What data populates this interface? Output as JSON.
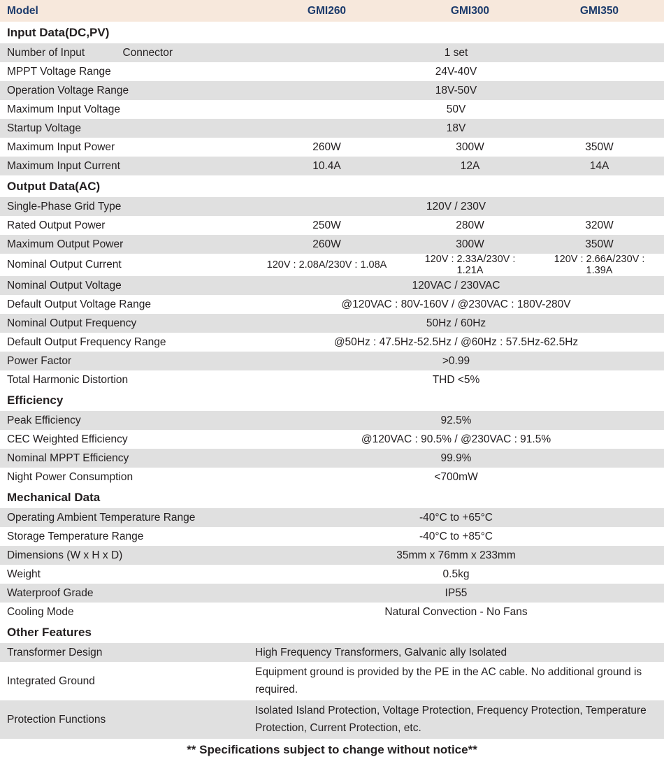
{
  "header": {
    "model": "Model",
    "m1": "GMI260",
    "m2": "GMI300",
    "m3": "GMI350"
  },
  "sections": {
    "input": "Input Data(DC,PV)",
    "output": "Output Data(AC)",
    "eff": "Efficiency",
    "mech": "Mechanical Data",
    "other": "Other Features"
  },
  "rows": {
    "num_input": {
      "label": "Number of Input",
      "extra": "Connector",
      "val": "1 set"
    },
    "mppt": {
      "label": "MPPT Voltage Range",
      "val": "24V-40V"
    },
    "opv": {
      "label": "Operation Voltage Range",
      "val": "18V-50V"
    },
    "maxv": {
      "label": "Maximum Input Voltage",
      "val": "50V"
    },
    "startup": {
      "label": "Startup Voltage",
      "val": "18V"
    },
    "maxp": {
      "label": "Maximum Input Power",
      "m1": "260W",
      "m2": "300W",
      "m3": "350W"
    },
    "maxi": {
      "label": "Maximum Input Current",
      "m1": "10.4A",
      "m2": "12A",
      "m3": "14A"
    },
    "grid": {
      "label": "Single-Phase Grid Type",
      "val": "120V  /  230V"
    },
    "rop": {
      "label": "Rated Output Power",
      "m1": "250W",
      "m2": "280W",
      "m3": "320W"
    },
    "mop": {
      "label": "Maximum Output Power",
      "m1": "260W",
      "m2": "300W",
      "m3": "350W"
    },
    "noc": {
      "label": "Nominal Output Current",
      "m1": "120V : 2.08A/230V : 1.08A",
      "m2": "120V : 2.33A/230V : 1.21A",
      "m3": "120V : 2.66A/230V : 1.39A"
    },
    "nov": {
      "label": "Nominal Output Voltage",
      "val": "120VAC  /  230VAC"
    },
    "dovr": {
      "label": "Default Output Voltage Range",
      "val": "@120VAC : 80V-160V  /  @230VAC : 180V-280V"
    },
    "nof": {
      "label": "Nominal Output Frequency",
      "val": "50Hz  /  60Hz"
    },
    "dofr": {
      "label": "Default Output Frequency Range",
      "val": "@50Hz : 47.5Hz-52.5Hz   /   @60Hz : 57.5Hz-62.5Hz"
    },
    "pf": {
      "label": "Power Factor",
      "val": ">0.99"
    },
    "thd": {
      "label": "Total Harmonic Distortion",
      "val": "THD <5%"
    },
    "peak": {
      "label": "Peak Efficiency",
      "val": "92.5%"
    },
    "cec": {
      "label": "CEC Weighted Efficiency",
      "val": "@120VAC : 90.5%  /  @230VAC : 91.5%"
    },
    "nmppt": {
      "label": "Nominal MPPT Efficiency",
      "val": "99.9%"
    },
    "night": {
      "label": "Night Power Consumption",
      "val": "<700mW"
    },
    "optemp": {
      "label": "Operating Ambient Temperature Range",
      "val": "-40°C to +65°C"
    },
    "stotemp": {
      "label": "Storage Temperature Range",
      "val": "-40°C to +85°C"
    },
    "dim": {
      "label": "Dimensions (W x H x D)",
      "val": "35mm x 76mm x 233mm"
    },
    "weight": {
      "label": "Weight",
      "val": "0.5kg"
    },
    "wp": {
      "label": "Waterproof Grade",
      "val": "IP55"
    },
    "cool": {
      "label": "Cooling Mode",
      "val": "Natural Convection - No Fans"
    },
    "trans": {
      "label": "Transformer Design",
      "val": "High Frequency Transformers, Galvanic ally Isolated"
    },
    "ground": {
      "label": "Integrated Ground",
      "val": "Equipment ground is provided by the PE in the AC cable. No additional ground is required."
    },
    "prot": {
      "label": "Protection Functions",
      "val": "Isolated Island Protection, Voltage Protection, Frequency Protection, Temperature Protection, Current Protection, etc."
    }
  },
  "footnote": "** Specifications subject to change without notice**",
  "colors": {
    "header_bg": "#f7e8dc",
    "header_fg": "#1b3a6b",
    "row_grey": "#e0e0e0",
    "row_white": "#ffffff",
    "text": "#231f20"
  }
}
